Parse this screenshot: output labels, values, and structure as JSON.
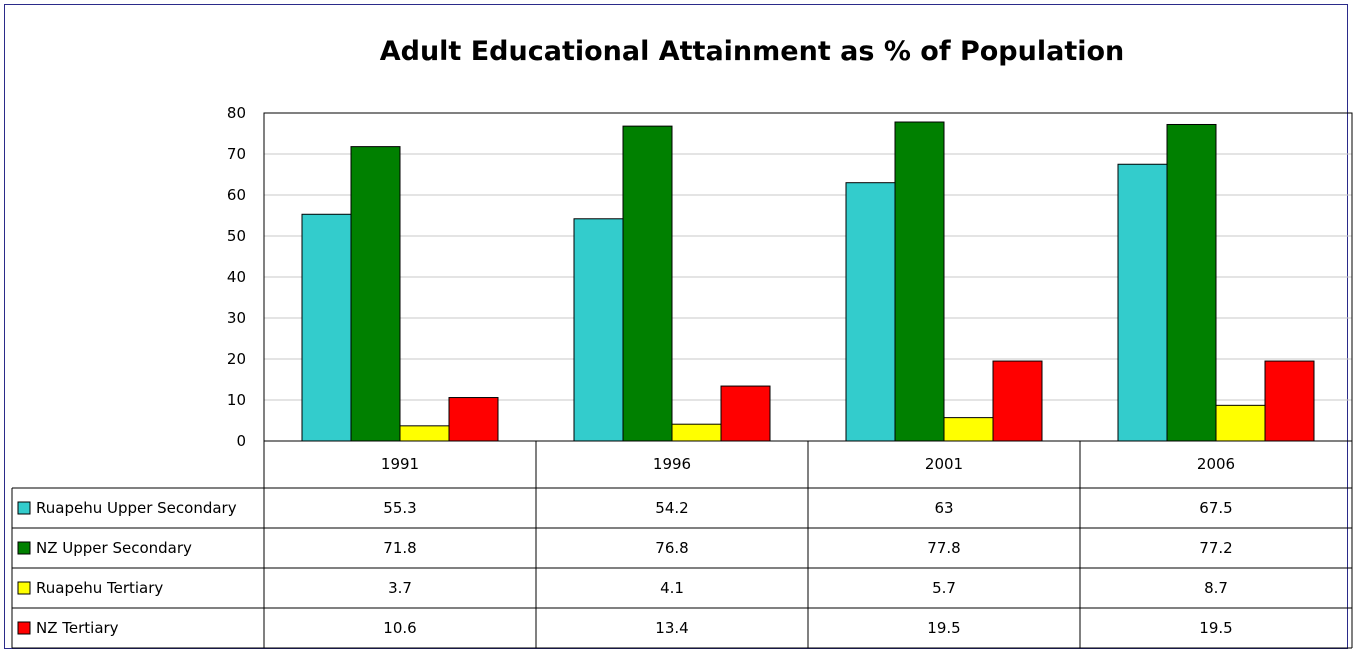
{
  "chart_data": {
    "type": "bar",
    "title": "Adult Educational Attainment as % of Population",
    "categories": [
      "1991",
      "1996",
      "2001",
      "2006"
    ],
    "ylim": [
      0,
      80
    ],
    "yticks": [
      "0",
      "10",
      "20",
      "30",
      "40",
      "50",
      "60",
      "70",
      "80"
    ],
    "grid": true,
    "legend": "data-table-left",
    "series": [
      {
        "name": "Ruapehu Upper Secondary",
        "color": "#33cccc",
        "values": [
          55.3,
          54.2,
          63,
          67.5
        ],
        "labels": [
          "55.3",
          "54.2",
          "63",
          "67.5"
        ]
      },
      {
        "name": "NZ Upper Secondary",
        "color": "#008000",
        "values": [
          71.8,
          76.8,
          77.8,
          77.2
        ],
        "labels": [
          "71.8",
          "76.8",
          "77.8",
          "77.2"
        ]
      },
      {
        "name": "Ruapehu Tertiary",
        "color": "#ffff00",
        "values": [
          3.7,
          4.1,
          5.7,
          8.7
        ],
        "labels": [
          "3.7",
          "4.1",
          "5.7",
          "8.7"
        ]
      },
      {
        "name": "NZ Tertiary",
        "color": "#ff0000",
        "values": [
          10.6,
          13.4,
          19.5,
          19.5
        ],
        "labels": [
          "10.6",
          "13.4",
          "19.5",
          "19.5"
        ]
      }
    ]
  }
}
